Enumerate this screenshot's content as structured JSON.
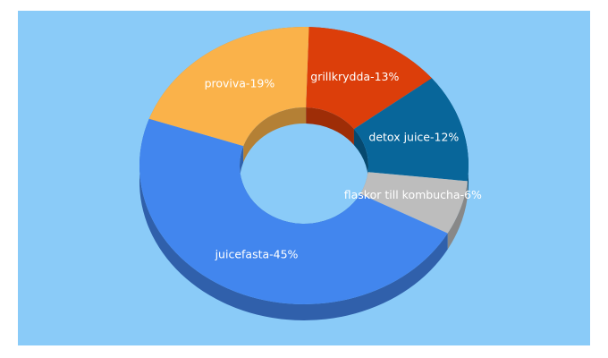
{
  "chart_data": {
    "type": "donut3d",
    "values": [
      13,
      12,
      6,
      45,
      19
    ],
    "value_labels": [
      "grillkrydda-13%",
      "detox juice-12%",
      "flaskor till kombucha-6%",
      "juicefasta-45%",
      "proviva-19%"
    ],
    "colors": [
      "#dc3e0a",
      "#08669a",
      "#bdbdbd",
      "#4286ee",
      "#fab24a"
    ]
  }
}
